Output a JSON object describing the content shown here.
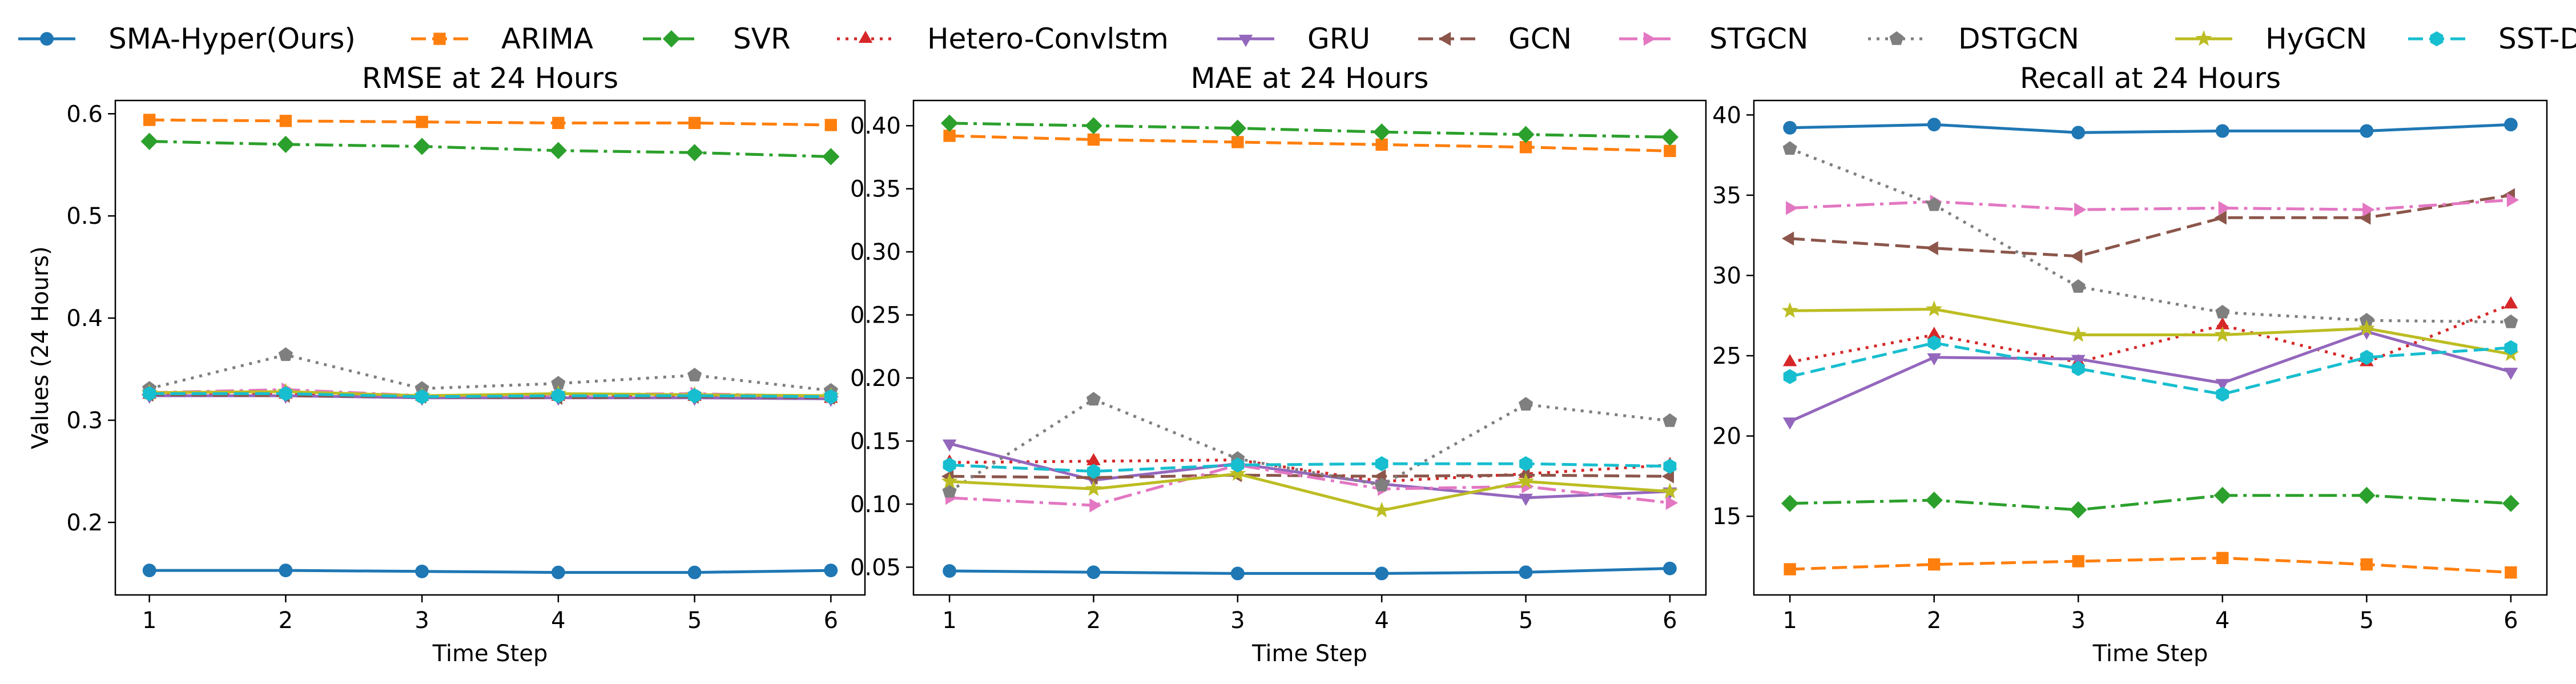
{
  "figure": {
    "legend_position": "top",
    "ylabel_shared": "Values (24 Hours)"
  },
  "legend": [
    {
      "name": "SMA-Hyper(Ours)",
      "color": "#1f77b4",
      "dash": "solid",
      "marker": "circle"
    },
    {
      "name": "ARIMA",
      "color": "#ff7f0e",
      "dash": "dashed",
      "marker": "square"
    },
    {
      "name": "SVR",
      "color": "#2ca02c",
      "dash": "dashdot",
      "marker": "diamond"
    },
    {
      "name": "Hetero-Convlstm",
      "color": "#d62728",
      "dash": "dotted",
      "marker": "triangle-up"
    },
    {
      "name": "GRU",
      "color": "#9467bd",
      "dash": "solid",
      "marker": "triangle-down"
    },
    {
      "name": "GCN",
      "color": "#8c564b",
      "dash": "dashed",
      "marker": "triangle-left"
    },
    {
      "name": "STGCN",
      "color": "#e377c2",
      "dash": "dashdot",
      "marker": "triangle-right"
    },
    {
      "name": "DSTGCN",
      "color": "#7f7f7f",
      "dash": "dotted",
      "marker": "pentagon"
    },
    {
      "name": "HyGCN",
      "color": "#bcbd22",
      "dash": "solid",
      "marker": "star"
    },
    {
      "name": "SST-DHL",
      "color": "#17becf",
      "dash": "dashed",
      "marker": "hexagon"
    }
  ],
  "chart_data": [
    {
      "type": "line",
      "title": "RMSE at 24 Hours",
      "xlabel": "Time Step",
      "ylabel": "Values (24 Hours)",
      "x": [
        1,
        2,
        3,
        4,
        5,
        6
      ],
      "xlim": [
        0.75,
        6.25
      ],
      "ylim": [
        0.129,
        0.613
      ],
      "yticks": [
        0.2,
        0.3,
        0.4,
        0.5,
        0.6
      ],
      "ytick_labels": [
        "0.2",
        "0.3",
        "0.4",
        "0.5",
        "0.6"
      ],
      "series": [
        {
          "name": "SMA-Hyper(Ours)",
          "values": [
            0.153,
            0.153,
            0.152,
            0.151,
            0.151,
            0.153
          ]
        },
        {
          "name": "ARIMA",
          "values": [
            0.594,
            0.593,
            0.592,
            0.591,
            0.591,
            0.589
          ]
        },
        {
          "name": "SVR",
          "values": [
            0.573,
            0.57,
            0.568,
            0.564,
            0.562,
            0.558
          ]
        },
        {
          "name": "Hetero-Convlstm",
          "values": [
            0.325,
            0.325,
            0.323,
            0.323,
            0.323,
            0.321
          ]
        },
        {
          "name": "GRU",
          "values": [
            0.324,
            0.324,
            0.322,
            0.322,
            0.322,
            0.321
          ]
        },
        {
          "name": "GCN",
          "values": [
            0.325,
            0.324,
            0.323,
            0.322,
            0.323,
            0.322
          ]
        },
        {
          "name": "STGCN",
          "values": [
            0.327,
            0.33,
            0.324,
            0.325,
            0.326,
            0.323
          ]
        },
        {
          "name": "DSTGCN",
          "values": [
            0.331,
            0.364,
            0.331,
            0.336,
            0.344,
            0.329
          ]
        },
        {
          "name": "HyGCN",
          "values": [
            0.327,
            0.328,
            0.324,
            0.326,
            0.325,
            0.324
          ]
        },
        {
          "name": "SST-DHL",
          "values": [
            0.326,
            0.326,
            0.323,
            0.324,
            0.324,
            0.323
          ]
        }
      ]
    },
    {
      "type": "line",
      "title": "MAE at 24 Hours",
      "xlabel": "Time Step",
      "ylabel": "",
      "x": [
        1,
        2,
        3,
        4,
        5,
        6
      ],
      "xlim": [
        0.75,
        6.25
      ],
      "ylim": [
        0.028,
        0.42
      ],
      "yticks": [
        0.05,
        0.1,
        0.15,
        0.2,
        0.25,
        0.3,
        0.35,
        0.4
      ],
      "ytick_labels": [
        "0.05",
        "0.10",
        "0.15",
        "0.20",
        "0.25",
        "0.30",
        "0.35",
        "0.40"
      ],
      "series": [
        {
          "name": "SMA-Hyper(Ours)",
          "values": [
            0.047,
            0.046,
            0.045,
            0.045,
            0.046,
            0.049
          ]
        },
        {
          "name": "ARIMA",
          "values": [
            0.392,
            0.389,
            0.387,
            0.385,
            0.383,
            0.38
          ]
        },
        {
          "name": "SVR",
          "values": [
            0.402,
            0.4,
            0.398,
            0.395,
            0.393,
            0.391
          ]
        },
        {
          "name": "Hetero-Convlstm",
          "values": [
            0.133,
            0.134,
            0.135,
            0.118,
            0.124,
            0.131
          ]
        },
        {
          "name": "GRU",
          "values": [
            0.148,
            0.119,
            0.132,
            0.116,
            0.105,
            0.11
          ]
        },
        {
          "name": "GCN",
          "values": [
            0.122,
            0.121,
            0.123,
            0.122,
            0.123,
            0.122
          ]
        },
        {
          "name": "STGCN",
          "values": [
            0.105,
            0.099,
            0.131,
            0.112,
            0.114,
            0.101
          ]
        },
        {
          "name": "DSTGCN",
          "values": [
            0.11,
            0.183,
            0.136,
            0.115,
            0.179,
            0.166
          ]
        },
        {
          "name": "HyGCN",
          "values": [
            0.118,
            0.112,
            0.124,
            0.095,
            0.118,
            0.11
          ]
        },
        {
          "name": "SST-DHL",
          "values": [
            0.131,
            0.126,
            0.131,
            0.132,
            0.132,
            0.13
          ]
        }
      ]
    },
    {
      "type": "line",
      "title": "Recall at 24 Hours",
      "xlabel": "Time Step",
      "ylabel": "",
      "x": [
        1,
        2,
        3,
        4,
        5,
        6
      ],
      "xlim": [
        0.75,
        6.25
      ],
      "ylim": [
        10.1,
        40.9
      ],
      "yticks": [
        15,
        20,
        25,
        30,
        35,
        40
      ],
      "ytick_labels": [
        "15",
        "20",
        "25",
        "30",
        "35",
        "40"
      ],
      "series": [
        {
          "name": "SMA-Hyper(Ours)",
          "values": [
            39.2,
            39.4,
            38.9,
            39.0,
            39.0,
            39.4
          ]
        },
        {
          "name": "ARIMA",
          "values": [
            11.7,
            12.0,
            12.2,
            12.4,
            12.0,
            11.5
          ]
        },
        {
          "name": "SVR",
          "values": [
            15.8,
            16.0,
            15.4,
            16.3,
            16.3,
            15.8
          ]
        },
        {
          "name": "Hetero-Convlstm",
          "values": [
            24.6,
            26.3,
            24.6,
            26.9,
            24.6,
            28.2
          ]
        },
        {
          "name": "GRU",
          "values": [
            20.9,
            24.9,
            24.8,
            23.3,
            26.5,
            24.0
          ]
        },
        {
          "name": "GCN",
          "values": [
            32.3,
            31.7,
            31.2,
            33.6,
            33.6,
            35.0
          ]
        },
        {
          "name": "STGCN",
          "values": [
            34.2,
            34.6,
            34.1,
            34.2,
            34.1,
            34.7
          ]
        },
        {
          "name": "DSTGCN",
          "values": [
            37.9,
            34.4,
            29.3,
            27.7,
            27.2,
            27.1
          ]
        },
        {
          "name": "HyGCN",
          "values": [
            27.8,
            27.9,
            26.3,
            26.3,
            26.7,
            25.1
          ]
        },
        {
          "name": "SST-DHL",
          "values": [
            23.7,
            25.8,
            24.2,
            22.6,
            24.9,
            25.5
          ]
        }
      ]
    }
  ]
}
